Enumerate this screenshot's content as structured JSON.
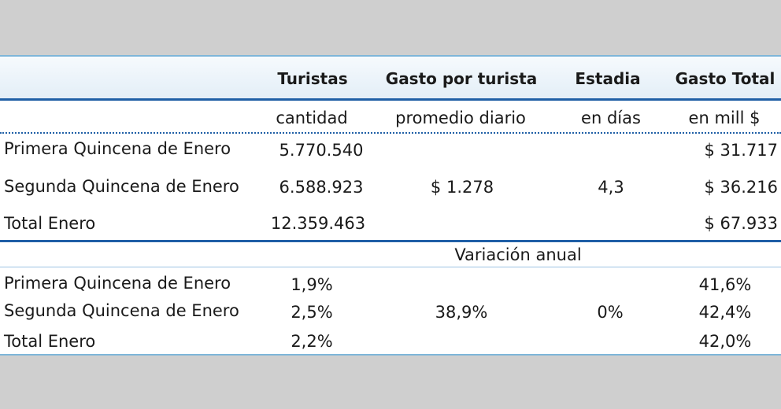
{
  "table": {
    "headers": [
      "Turistas",
      "Gasto por turista",
      "Estadia",
      "Gasto Total"
    ],
    "units": [
      "cantidad",
      "promedio diario",
      "en días",
      "en mill $"
    ],
    "main_rows": [
      {
        "label": "Primera Quincena de Enero",
        "turistas": "5.770.540",
        "gasto_total": "$ 31.717"
      },
      {
        "label": "Segunda Quincena de Enero",
        "turistas": "6.588.923",
        "gasto_total": "$ 36.216"
      },
      {
        "label": "Total Enero",
        "turistas": "12.359.463",
        "gasto_total": "$ 67.933"
      }
    ],
    "gasto_por_turista": "$ 1.278",
    "estadia": "4,3",
    "variacion_title": "Variación anual",
    "var_rows": [
      {
        "label": "Primera Quincena de Enero",
        "turistas": "1,9%",
        "gasto_total": "41,6%"
      },
      {
        "label": "Segunda Quincena de Enero",
        "turistas": "2,5%",
        "gasto_total": "42,4%"
      },
      {
        "label": "Total Enero",
        "turistas": "2,2%",
        "gasto_total": "42,0%"
      }
    ],
    "var_gasto_por_turista": "38,9%",
    "var_estadia": "0%"
  }
}
